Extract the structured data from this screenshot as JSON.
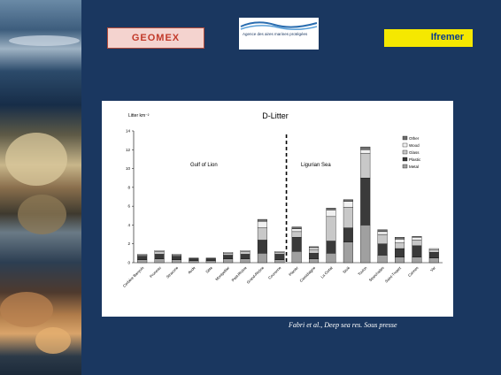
{
  "logos": {
    "left_text": "GEOMEX",
    "center_text": "Agence des aires marines protégées",
    "right_text": "Ifremer"
  },
  "citation": "Fabri et al., Deep sea res.  Sous presse",
  "colors": {
    "slide_background": "#1a3760",
    "chart_background": "#ffffff",
    "divider_line": "#000000"
  },
  "chart_data": {
    "type": "bar",
    "stacked": true,
    "title": "D-Litter",
    "ylabel": "Litter km⁻²",
    "xlabel": "",
    "ylim": [
      0,
      14
    ],
    "yticks": [
      0,
      2,
      4,
      6,
      8,
      10,
      12,
      14
    ],
    "grid": false,
    "legend_position": "top-right",
    "regions": [
      {
        "label": "Gulf of  Lion"
      },
      {
        "label": "Ligurian Sea"
      }
    ],
    "divider_after_category": 12,
    "categories": [
      "Cerbère Banyuls",
      "Pruneau",
      "Stracone",
      "Aude",
      "Sète",
      "Montpellier",
      "Petit-Rhône",
      "Grand-Rhône",
      "Couronne",
      "Planier",
      "Cassidaigne",
      "La Ciotat",
      "Sicié",
      "Toulon",
      "Stoechades",
      "Saint-Tropez",
      "Cannes",
      "Var"
    ],
    "series": [
      {
        "name": "Metal",
        "color": "#a0a0a0",
        "values": [
          0.3,
          0.4,
          0.3,
          0.2,
          0.2,
          0.4,
          0.4,
          1.0,
          0.3,
          1.2,
          0.4,
          1.0,
          2.2,
          4.0,
          0.8,
          0.6,
          0.6,
          0.5
        ]
      },
      {
        "name": "Plastic",
        "color": "#3a3a3a",
        "values": [
          0.4,
          0.5,
          0.4,
          0.3,
          0.3,
          0.4,
          0.5,
          1.4,
          0.6,
          1.5,
          0.6,
          1.3,
          1.5,
          5.0,
          1.2,
          0.9,
          1.2,
          0.6
        ]
      },
      {
        "name": "Glass",
        "color": "#c8c8c8",
        "values": [
          0.1,
          0.3,
          0.1,
          0.0,
          0.0,
          0.2,
          0.3,
          1.3,
          0.2,
          0.6,
          0.4,
          2.6,
          2.2,
          2.6,
          1.0,
          0.6,
          0.6,
          0.3
        ]
      },
      {
        "name": "Wood",
        "color": "#f0f0f0",
        "values": [
          0.1,
          0.1,
          0.1,
          0.0,
          0.0,
          0.1,
          0.1,
          0.7,
          0.1,
          0.3,
          0.2,
          0.7,
          0.6,
          0.4,
          0.3,
          0.4,
          0.3,
          0.1
        ]
      },
      {
        "name": "Other",
        "color": "#707070",
        "values": [
          0.0,
          0.0,
          0.0,
          0.0,
          0.0,
          0.0,
          0.0,
          0.2,
          0.0,
          0.2,
          0.1,
          0.2,
          0.2,
          0.3,
          0.2,
          0.2,
          0.1,
          0.0
        ]
      }
    ]
  }
}
